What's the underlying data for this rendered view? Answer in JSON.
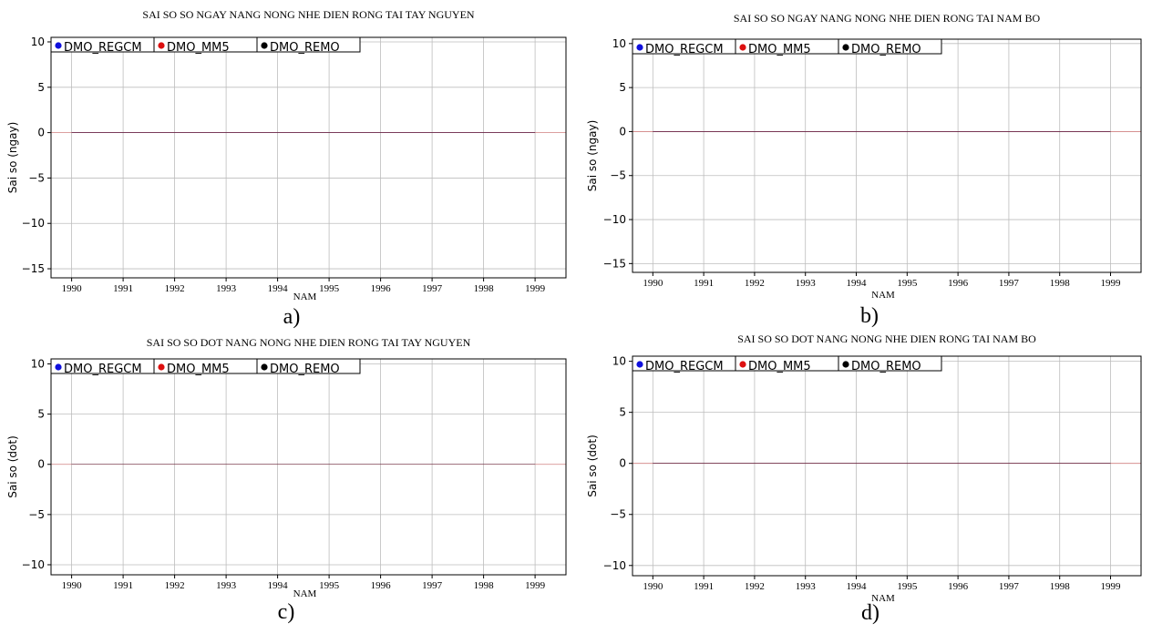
{
  "colors": {
    "regcm": "#1010dd",
    "mm5": "#dd1010",
    "remo": "#000000",
    "grid": "#bdbdbd",
    "zero_line": "#d08080"
  },
  "chart_data": [
    {
      "type": "line",
      "caption": "a)",
      "title": "SAI SO SO NGAY NANG NONG NHE DIEN RONG TAI TAY NGUYEN",
      "xlabel": "NAM",
      "ylabel": "Sai so  (ngay)",
      "x": [
        1990,
        1991,
        1992,
        1993,
        1994,
        1995,
        1996,
        1997,
        1998,
        1999
      ],
      "xtick_labels": [
        "1990",
        "1991",
        "1992",
        "1993",
        "1994",
        "1995",
        "1996",
        "1997",
        "1998",
        "1999"
      ],
      "ylim": [
        -16,
        10.5
      ],
      "yticks": [
        10,
        5,
        0,
        -5,
        -10,
        -15
      ],
      "ytick_labels": [
        "10",
        "5",
        "0",
        "−5",
        "−10",
        "−15"
      ],
      "grid": true,
      "legend_position": "top-left",
      "series": [
        {
          "name": "DMO_REGCM",
          "color": "#1010dd",
          "values": [
            0,
            0,
            0,
            0,
            0,
            0,
            0,
            0,
            0,
            0
          ]
        },
        {
          "name": "DMO_MM5",
          "color": "#dd1010",
          "values": [
            0,
            0,
            0,
            0,
            0,
            0,
            0,
            0,
            0,
            0
          ]
        },
        {
          "name": "DMO_REMO",
          "color": "#000000",
          "values": [
            0,
            0,
            0,
            0,
            0,
            0,
            0,
            0,
            0,
            0
          ]
        }
      ]
    },
    {
      "type": "line",
      "caption": "b)",
      "title": "SAI SO SO NGAY NANG NONG NHE DIEN RONG TAI NAM BO",
      "xlabel": "NAM",
      "ylabel": "Sai so  (ngay)",
      "x": [
        1990,
        1991,
        1992,
        1993,
        1994,
        1995,
        1996,
        1997,
        1998,
        1999
      ],
      "xtick_labels": [
        "1990",
        "1991",
        "1992",
        "1993",
        "1994",
        "1995",
        "1996",
        "1997",
        "1998",
        "1999"
      ],
      "ylim": [
        -16,
        10.5
      ],
      "yticks": [
        10,
        5,
        0,
        -5,
        -10,
        -15
      ],
      "ytick_labels": [
        "10",
        "5",
        "0",
        "−5",
        "−10",
        "−15"
      ],
      "grid": true,
      "legend_position": "top-left",
      "series": [
        {
          "name": "DMO_REGCM",
          "color": "#1010dd",
          "values": [
            0,
            0,
            0,
            0,
            0,
            0,
            0,
            0,
            0,
            0
          ]
        },
        {
          "name": "DMO_MM5",
          "color": "#dd1010",
          "values": [
            0,
            0,
            0,
            0,
            0,
            0,
            0,
            0,
            0,
            0
          ]
        },
        {
          "name": "DMO_REMO",
          "color": "#000000",
          "values": [
            0,
            0,
            0,
            0,
            0,
            0,
            0,
            0,
            0,
            0
          ]
        }
      ]
    },
    {
      "type": "line",
      "caption": "c)",
      "title": "SAI SO SO DOT NANG NONG NHE DIEN RONG TAI TAY NGUYEN",
      "xlabel": "NAM",
      "ylabel": "Sai so  (dot)",
      "x": [
        1990,
        1991,
        1992,
        1993,
        1994,
        1995,
        1996,
        1997,
        1998,
        1999
      ],
      "xtick_labels": [
        "1990",
        "1991",
        "1992",
        "1993",
        "1994",
        "1995",
        "1996",
        "1997",
        "1998",
        "1999"
      ],
      "ylim": [
        -11,
        10.5
      ],
      "yticks": [
        10,
        5,
        0,
        -5,
        -10
      ],
      "ytick_labels": [
        "10",
        "5",
        "0",
        "−5",
        "−10"
      ],
      "grid": true,
      "legend_position": "top-left",
      "series": [
        {
          "name": "DMO_REGCM",
          "color": "#1010dd",
          "values": [
            0,
            0,
            0,
            0,
            0,
            0,
            0,
            0,
            0,
            0
          ]
        },
        {
          "name": "DMO_MM5",
          "color": "#dd1010",
          "values": [
            0,
            0,
            0,
            0,
            0,
            0,
            0,
            0,
            0,
            0
          ]
        },
        {
          "name": "DMO_REMO",
          "color": "#000000",
          "values": [
            0,
            0,
            0,
            0,
            0,
            0,
            0,
            0,
            0,
            0
          ]
        }
      ]
    },
    {
      "type": "line",
      "caption": "d)",
      "title": "SAI SO SO DOT NANG NONG NHE DIEN RONG TAI NAM BO",
      "xlabel": "NAM",
      "ylabel": "Sai so  (dot)",
      "x": [
        1990,
        1991,
        1992,
        1993,
        1994,
        1995,
        1996,
        1997,
        1998,
        1999
      ],
      "xtick_labels": [
        "1990",
        "1991",
        "1992",
        "1993",
        "1994",
        "1995",
        "1996",
        "1997",
        "1998",
        "1999"
      ],
      "ylim": [
        -11,
        10.5
      ],
      "yticks": [
        10,
        5,
        0,
        -5,
        -10
      ],
      "ytick_labels": [
        "10",
        "5",
        "0",
        "−5",
        "−10"
      ],
      "grid": true,
      "legend_position": "top-left",
      "series": [
        {
          "name": "DMO_REGCM",
          "color": "#1010dd",
          "values": [
            0,
            0,
            0,
            0,
            0,
            0,
            0,
            0,
            0,
            0
          ]
        },
        {
          "name": "DMO_MM5",
          "color": "#dd1010",
          "values": [
            0,
            0,
            0,
            0,
            0,
            0,
            0,
            0,
            0,
            0
          ]
        },
        {
          "name": "DMO_REMO",
          "color": "#000000",
          "values": [
            0,
            0,
            0,
            0,
            0,
            0,
            0,
            0,
            0,
            0
          ]
        }
      ]
    }
  ]
}
